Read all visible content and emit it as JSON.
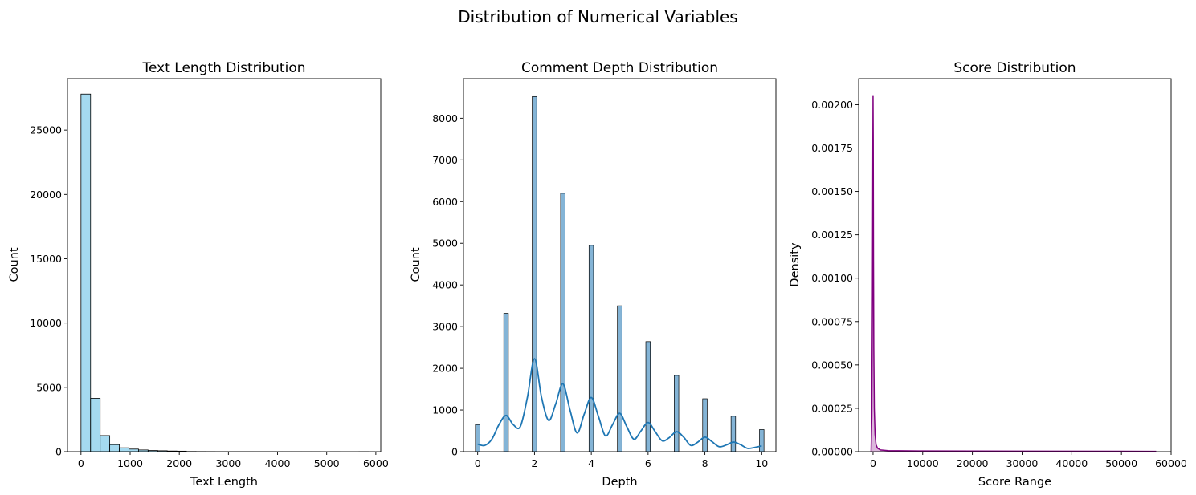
{
  "figure": {
    "title": "Distribution of Numerical Variables"
  },
  "chart_data": [
    {
      "type": "bar",
      "title": "Text Length Distribution",
      "xlabel": "Text Length",
      "ylabel": "Count",
      "xlim": [
        -275,
        6100
      ],
      "ylim": [
        0,
        29000
      ],
      "xticks": [
        "0",
        "1000",
        "2000",
        "3000",
        "4000",
        "5000",
        "6000"
      ],
      "yticks": [
        "0",
        "5000",
        "10000",
        "15000",
        "20000",
        "25000"
      ],
      "grid": false,
      "color": "#87ceeb",
      "bins": [
        {
          "x0": 0,
          "x1": 195,
          "count": 27800
        },
        {
          "x0": 195,
          "x1": 390,
          "count": 4150
        },
        {
          "x0": 390,
          "x1": 585,
          "count": 1250
        },
        {
          "x0": 585,
          "x1": 780,
          "count": 550
        },
        {
          "x0": 780,
          "x1": 975,
          "count": 300
        },
        {
          "x0": 975,
          "x1": 1170,
          "count": 200
        },
        {
          "x0": 1170,
          "x1": 1365,
          "count": 130
        },
        {
          "x0": 1365,
          "x1": 1560,
          "count": 90
        },
        {
          "x0": 1560,
          "x1": 1755,
          "count": 70
        },
        {
          "x0": 1755,
          "x1": 1950,
          "count": 50
        },
        {
          "x0": 1950,
          "x1": 2145,
          "count": 40
        },
        {
          "x0": 2145,
          "x1": 2340,
          "count": 15
        },
        {
          "x0": 2340,
          "x1": 2535,
          "count": 10
        },
        {
          "x0": 2535,
          "x1": 2730,
          "count": 8
        },
        {
          "x0": 2730,
          "x1": 2925,
          "count": 5
        },
        {
          "x0": 2925,
          "x1": 3120,
          "count": 4
        },
        {
          "x0": 3120,
          "x1": 3315,
          "count": 3
        },
        {
          "x0": 3315,
          "x1": 3510,
          "count": 3
        },
        {
          "x0": 3510,
          "x1": 3705,
          "count": 2
        },
        {
          "x0": 3705,
          "x1": 3900,
          "count": 2
        },
        {
          "x0": 3900,
          "x1": 4095,
          "count": 1
        },
        {
          "x0": 4095,
          "x1": 4290,
          "count": 1
        },
        {
          "x0": 4290,
          "x1": 4485,
          "count": 1
        },
        {
          "x0": 4485,
          "x1": 4680,
          "count": 1
        },
        {
          "x0": 4680,
          "x1": 4875,
          "count": 1
        },
        {
          "x0": 4875,
          "x1": 5070,
          "count": 0
        },
        {
          "x0": 5070,
          "x1": 5265,
          "count": 1
        },
        {
          "x0": 5265,
          "x1": 5460,
          "count": 0
        },
        {
          "x0": 5460,
          "x1": 5655,
          "count": 0
        },
        {
          "x0": 5655,
          "x1": 5850,
          "count": 1
        }
      ]
    },
    {
      "type": "bar",
      "title": "Comment Depth Distribution",
      "xlabel": "Depth",
      "ylabel": "Count",
      "xlim": [
        -0.5,
        10.5
      ],
      "ylim": [
        0,
        8950
      ],
      "xticks": [
        "0",
        "2",
        "4",
        "6",
        "8",
        "10"
      ],
      "yticks": [
        "0",
        "1000",
        "2000",
        "3000",
        "4000",
        "5000",
        "6000",
        "7000",
        "8000"
      ],
      "grid": false,
      "color": "#1f77b4",
      "bar_width": 0.16,
      "depths": [
        0,
        1,
        2,
        3,
        4,
        5,
        6,
        7,
        8,
        9,
        10
      ],
      "counts": [
        650,
        3320,
        8520,
        6200,
        4950,
        3500,
        2640,
        1830,
        1270,
        850,
        530
      ],
      "kde_line": {
        "x": [
          0,
          0.25,
          0.5,
          0.75,
          1,
          1.25,
          1.5,
          1.75,
          2,
          2.25,
          2.5,
          2.75,
          3,
          3.25,
          3.5,
          3.75,
          4,
          4.25,
          4.5,
          4.75,
          5,
          5.25,
          5.5,
          5.75,
          6,
          6.25,
          6.5,
          6.75,
          7,
          7.25,
          7.5,
          7.75,
          8,
          8.25,
          8.5,
          8.75,
          9,
          9.25,
          9.5,
          9.75,
          10
        ],
        "y": [
          180,
          150,
          300,
          650,
          870,
          650,
          600,
          1300,
          2230,
          1300,
          750,
          1150,
          1630,
          1000,
          450,
          900,
          1300,
          850,
          380,
          650,
          920,
          600,
          300,
          500,
          700,
          480,
          260,
          340,
          480,
          350,
          150,
          230,
          350,
          240,
          120,
          160,
          230,
          170,
          80,
          100,
          140
        ]
      }
    },
    {
      "type": "area",
      "title": "Score Distribution",
      "xlabel": "Score Range",
      "ylabel": "Density",
      "xlim": [
        -2900,
        60000
      ],
      "ylim": [
        0,
        0.00215
      ],
      "xticks": [
        "0",
        "10000",
        "20000",
        "30000",
        "40000",
        "50000",
        "60000"
      ],
      "yticks": [
        "0.00000",
        "0.00025",
        "0.00050",
        "0.00075",
        "0.00100",
        "0.00125",
        "0.00150",
        "0.00175",
        "0.00200"
      ],
      "grid": false,
      "color": "#800080",
      "x": [
        -400,
        -250,
        -120,
        -40,
        0,
        40,
        90,
        150,
        250,
        400,
        600,
        900,
        1500,
        3000,
        10000,
        30000,
        57000
      ],
      "y": [
        0,
        0.0002,
        0.0009,
        0.0017,
        0.00205,
        0.0018,
        0.0011,
        0.0006,
        0.00025,
        0.0001,
        4e-05,
        2e-05,
        1e-05,
        6e-06,
        4e-06,
        3e-06,
        2e-06
      ]
    }
  ]
}
